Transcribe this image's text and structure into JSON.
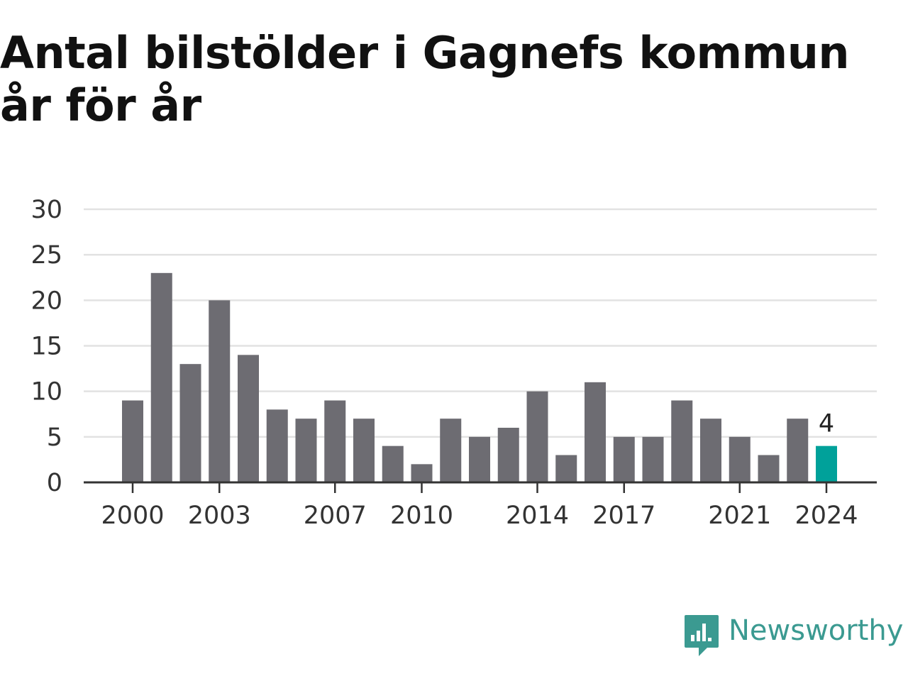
{
  "chart_data": {
    "type": "bar",
    "title": "Antal bilstölder i Gagnefs kommun år för år",
    "xlabel": "",
    "ylabel": "",
    "categories": [
      "2000",
      "2001",
      "2002",
      "2003",
      "2004",
      "2005",
      "2006",
      "2007",
      "2008",
      "2009",
      "2010",
      "2011",
      "2012",
      "2013",
      "2014",
      "2015",
      "2016",
      "2017",
      "2018",
      "2019",
      "2020",
      "2021",
      "2022",
      "2023",
      "2024"
    ],
    "values": [
      9,
      23,
      13,
      20,
      14,
      8,
      7,
      9,
      7,
      4,
      2,
      7,
      5,
      6,
      10,
      3,
      11,
      5,
      5,
      9,
      7,
      5,
      3,
      7,
      4
    ],
    "x_tick_labels": [
      "2000",
      "2003",
      "2007",
      "2010",
      "2014",
      "2017",
      "2021",
      "2024"
    ],
    "y_ticks": [
      0,
      5,
      10,
      15,
      20,
      25,
      30
    ],
    "ylim": [
      0,
      30
    ],
    "grid": true,
    "highlighted": {
      "category": "2024",
      "label": "4"
    },
    "colors": {
      "bar": "#6d6c72",
      "highlight": "#00a19a",
      "grid": "#e2e2e2",
      "axis": "#333333"
    }
  },
  "brand": {
    "name": "Newsworthy",
    "icon": "newsworthy-logo-icon",
    "color": "#3b9a91"
  }
}
